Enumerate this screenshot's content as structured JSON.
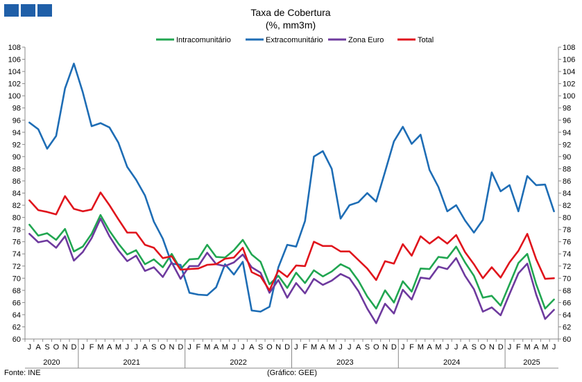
{
  "chart_data": {
    "type": "line",
    "title": "Taxa de Cobertura",
    "subtitle": "(%, mm3m)",
    "xlabel": "",
    "ylabel": "",
    "ylim": [
      60,
      108
    ],
    "y_ticks": [
      60,
      62,
      64,
      66,
      68,
      70,
      72,
      74,
      76,
      78,
      80,
      82,
      84,
      86,
      88,
      90,
      92,
      94,
      96,
      98,
      100,
      102,
      104,
      106,
      108
    ],
    "legend_position": "top",
    "grid": false,
    "month_labels": [
      "J",
      "A",
      "S",
      "O",
      "N",
      "D",
      "J",
      "F",
      "M",
      "A",
      "M",
      "J",
      "J",
      "A",
      "S",
      "O",
      "N",
      "D",
      "J",
      "F",
      "M",
      "A",
      "M",
      "J",
      "J",
      "A",
      "S",
      "O",
      "N",
      "D",
      "J",
      "F",
      "M",
      "A",
      "M",
      "J",
      "J",
      "A",
      "S",
      "O",
      "N",
      "D",
      "J",
      "F",
      "M",
      "A",
      "M",
      "J",
      "J",
      "A",
      "S",
      "O",
      "N",
      "D",
      "J",
      "F",
      "M",
      "A",
      "M",
      "J"
    ],
    "years": [
      {
        "label": "2020",
        "start": 0,
        "count": 6
      },
      {
        "label": "2021",
        "start": 6,
        "count": 12
      },
      {
        "label": "2022",
        "start": 18,
        "count": 12
      },
      {
        "label": "2023",
        "start": 30,
        "count": 12
      },
      {
        "label": "2024",
        "start": 42,
        "count": 12
      },
      {
        "label": "2025",
        "start": 54,
        "count": 6
      }
    ],
    "series": [
      {
        "name": "Intracomunitário",
        "color": "#21a651",
        "values": [
          78.8,
          77.0,
          77.4,
          76.3,
          78.1,
          74.4,
          75.2,
          77.3,
          80.4,
          77.8,
          75.7,
          73.9,
          74.6,
          72.3,
          73.1,
          71.8,
          74.0,
          71.5,
          73.1,
          73.2,
          75.5,
          73.5,
          73.4,
          74.6,
          76.3,
          73.9,
          72.7,
          69.0,
          70.4,
          68.4,
          70.9,
          69.2,
          71.3,
          70.3,
          71.1,
          72.3,
          71.6,
          69.6,
          67.0,
          65.0,
          68.0,
          66.0,
          69.5,
          67.8,
          71.6,
          71.5,
          73.5,
          73.3,
          75.2,
          72.6,
          70.4,
          66.8,
          67.1,
          65.5,
          69.0,
          72.5,
          74.0,
          69.0,
          65.0,
          66.5
        ]
      },
      {
        "name": "Extracomunitário",
        "color": "#1e6db5",
        "values": [
          95.6,
          94.5,
          91.3,
          93.4,
          101.2,
          105.3,
          100.6,
          95.0,
          95.5,
          94.8,
          92.3,
          88.3,
          86.2,
          83.6,
          79.3,
          76.5,
          72.4,
          72.2,
          67.6,
          67.3,
          67.2,
          68.5,
          72.3,
          70.6,
          72.7,
          64.7,
          64.5,
          65.3,
          71.8,
          75.5,
          75.2,
          79.4,
          90.0,
          90.9,
          88.0,
          79.8,
          82.0,
          82.5,
          84.0,
          82.6,
          87.5,
          92.5,
          94.9,
          92.1,
          93.6,
          87.8,
          85.0,
          81.0,
          82.0,
          79.5,
          77.5,
          79.6,
          87.4,
          84.3,
          85.3,
          81.0,
          86.8,
          85.3,
          85.4,
          81.0
        ]
      },
      {
        "name": "Zona Euro",
        "color": "#6e3a9e",
        "values": [
          77.3,
          75.9,
          76.2,
          75.0,
          76.9,
          72.9,
          74.3,
          76.6,
          79.8,
          76.9,
          74.6,
          72.8,
          73.7,
          71.2,
          71.8,
          70.2,
          72.6,
          69.9,
          72.0,
          72.0,
          74.2,
          72.3,
          72.0,
          72.6,
          73.9,
          71.8,
          70.9,
          67.6,
          69.7,
          66.8,
          69.2,
          67.5,
          69.9,
          68.9,
          69.6,
          70.7,
          70.0,
          67.9,
          65.0,
          62.6,
          65.8,
          64.2,
          68.1,
          66.5,
          70.1,
          69.9,
          71.9,
          71.5,
          73.3,
          70.4,
          68.2,
          64.5,
          65.2,
          63.9,
          67.4,
          70.8,
          72.4,
          67.3,
          63.3,
          64.8
        ]
      },
      {
        "name": "Total",
        "color": "#e0141c",
        "values": [
          82.8,
          81.2,
          80.9,
          80.5,
          83.5,
          81.4,
          81.0,
          81.3,
          84.1,
          82.0,
          79.7,
          77.5,
          77.5,
          75.5,
          75.0,
          73.3,
          73.6,
          71.4,
          71.5,
          71.6,
          72.2,
          72.3,
          73.2,
          73.4,
          75.0,
          71.0,
          70.3,
          68.0,
          71.3,
          70.2,
          72.1,
          72.0,
          76.0,
          75.3,
          75.3,
          74.4,
          74.4,
          73.0,
          71.6,
          69.7,
          72.8,
          72.4,
          75.6,
          73.7,
          76.9,
          75.7,
          76.8,
          75.7,
          77.1,
          74.3,
          72.3,
          70.0,
          71.8,
          70.1,
          72.6,
          74.5,
          77.3,
          73.1,
          69.9,
          70.0
        ]
      }
    ]
  },
  "source_label": "Fonte: INE",
  "credit_label": "(Gráfico: GEE)",
  "logo_icon": "gee-logo-icon"
}
